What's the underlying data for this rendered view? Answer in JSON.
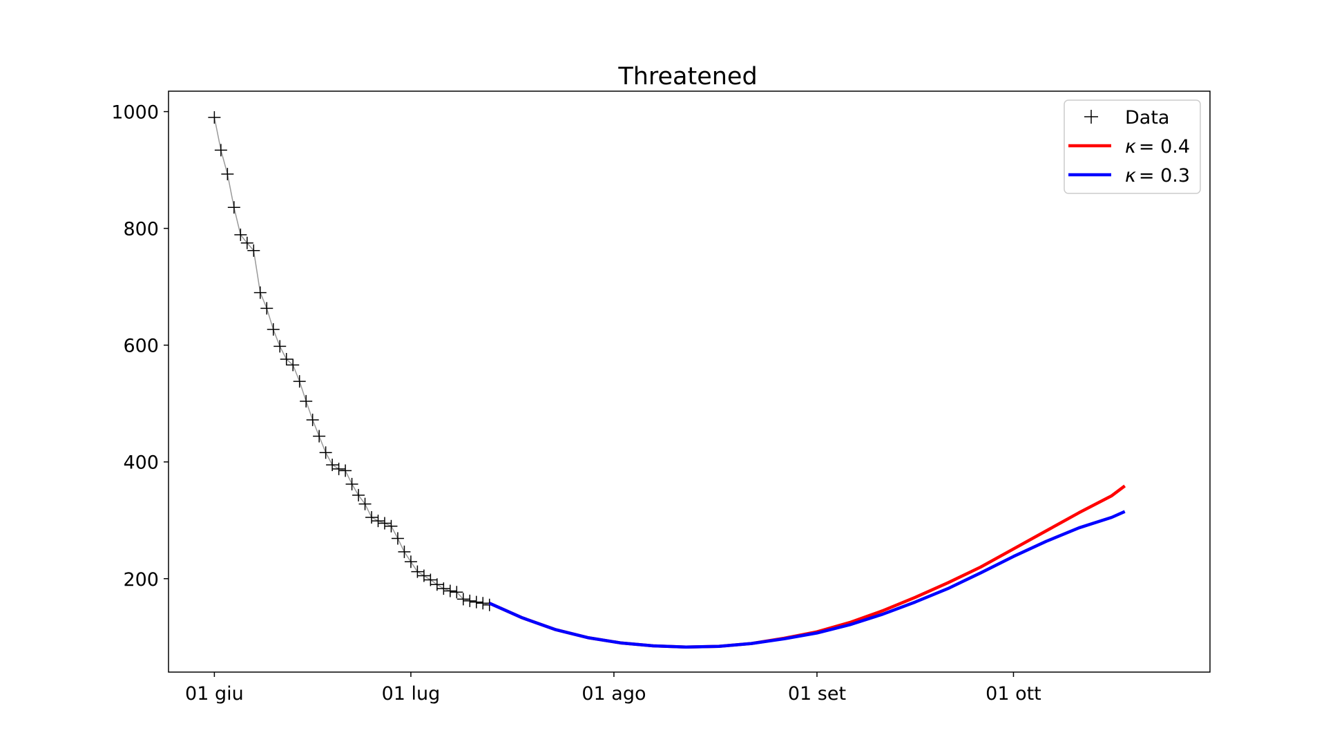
{
  "chart_data": {
    "type": "line",
    "title": "Threatened",
    "xlabel": "",
    "ylabel": "",
    "x_axis": {
      "kind": "date",
      "range": [
        "2020-05-25",
        "2020-10-31"
      ],
      "ticks": [
        {
          "date": "2020-06-01",
          "label": "01 giu"
        },
        {
          "date": "2020-07-01",
          "label": "01 lug"
        },
        {
          "date": "2020-08-01",
          "label": "01 ago"
        },
        {
          "date": "2020-09-01",
          "label": "01 set"
        },
        {
          "date": "2020-10-01",
          "label": "01 ott"
        }
      ]
    },
    "y_axis": {
      "range": [
        40,
        1035
      ],
      "ticks": [
        200,
        400,
        600,
        800,
        1000
      ]
    },
    "grid": false,
    "legend": {
      "placement": "top-right",
      "entries": [
        {
          "label": "Data",
          "symbol": "+",
          "color": "#000000"
        },
        {
          "label_prefix": "κ",
          "label_value": "= 0.4",
          "color": "#ff0000"
        },
        {
          "label_prefix": "κ",
          "label_value": "= 0.3",
          "color": "#0000ff"
        }
      ]
    },
    "series": [
      {
        "kind": "data",
        "color": "#000000",
        "connector_color": "#999999",
        "marker": "+",
        "points": [
          [
            "2020-06-01",
            990
          ],
          [
            "2020-06-02",
            934
          ],
          [
            "2020-06-03",
            893
          ],
          [
            "2020-06-04",
            836
          ],
          [
            "2020-06-05",
            789
          ],
          [
            "2020-06-06",
            775
          ],
          [
            "2020-06-07",
            762
          ],
          [
            "2020-06-08",
            690
          ],
          [
            "2020-06-09",
            663
          ],
          [
            "2020-06-10",
            627
          ],
          [
            "2020-06-11",
            598
          ],
          [
            "2020-06-12",
            576
          ],
          [
            "2020-06-13",
            566
          ],
          [
            "2020-06-14",
            538
          ],
          [
            "2020-06-15",
            504
          ],
          [
            "2020-06-16",
            472
          ],
          [
            "2020-06-17",
            444
          ],
          [
            "2020-06-18",
            416
          ],
          [
            "2020-06-19",
            395
          ],
          [
            "2020-06-20",
            388
          ],
          [
            "2020-06-21",
            385
          ],
          [
            "2020-06-22",
            362
          ],
          [
            "2020-06-23",
            343
          ],
          [
            "2020-06-24",
            328
          ],
          [
            "2020-06-25",
            305
          ],
          [
            "2020-06-26",
            299
          ],
          [
            "2020-06-27",
            295
          ],
          [
            "2020-06-28",
            290
          ],
          [
            "2020-06-29",
            269
          ],
          [
            "2020-06-30",
            246
          ],
          [
            "2020-07-01",
            229
          ],
          [
            "2020-07-02",
            212
          ],
          [
            "2020-07-03",
            205
          ],
          [
            "2020-07-04",
            198
          ],
          [
            "2020-07-05",
            190
          ],
          [
            "2020-07-06",
            183
          ],
          [
            "2020-07-07",
            179
          ],
          [
            "2020-07-08",
            177
          ],
          [
            "2020-07-09",
            165
          ],
          [
            "2020-07-10",
            162
          ],
          [
            "2020-07-11",
            160
          ],
          [
            "2020-07-12",
            158
          ],
          [
            "2020-07-13",
            155
          ]
        ]
      },
      {
        "kind": "model",
        "color": "#ff0000",
        "kappa": 0.4,
        "points": [
          [
            "2020-07-13",
            158
          ],
          [
            "2020-07-18",
            133
          ],
          [
            "2020-07-23",
            113
          ],
          [
            "2020-07-28",
            99
          ],
          [
            "2020-08-02",
            90
          ],
          [
            "2020-08-07",
            85
          ],
          [
            "2020-08-12",
            83
          ],
          [
            "2020-08-17",
            84
          ],
          [
            "2020-08-22",
            89
          ],
          [
            "2020-08-27",
            98
          ],
          [
            "2020-09-01",
            109
          ],
          [
            "2020-09-06",
            125
          ],
          [
            "2020-09-11",
            145
          ],
          [
            "2020-09-16",
            168
          ],
          [
            "2020-09-21",
            193
          ],
          [
            "2020-09-26",
            220
          ],
          [
            "2020-10-01",
            251
          ],
          [
            "2020-10-06",
            282
          ],
          [
            "2020-10-11",
            313
          ],
          [
            "2020-10-16",
            342
          ],
          [
            "2020-10-18",
            359
          ]
        ]
      },
      {
        "kind": "model",
        "color": "#0000ff",
        "kappa": 0.3,
        "points": [
          [
            "2020-07-13",
            158
          ],
          [
            "2020-07-18",
            133
          ],
          [
            "2020-07-23",
            113
          ],
          [
            "2020-07-28",
            99
          ],
          [
            "2020-08-02",
            90
          ],
          [
            "2020-08-07",
            85
          ],
          [
            "2020-08-12",
            83
          ],
          [
            "2020-08-17",
            84
          ],
          [
            "2020-08-22",
            89
          ],
          [
            "2020-08-27",
            97
          ],
          [
            "2020-09-01",
            107
          ],
          [
            "2020-09-06",
            121
          ],
          [
            "2020-09-11",
            139
          ],
          [
            "2020-09-16",
            160
          ],
          [
            "2020-09-21",
            183
          ],
          [
            "2020-09-26",
            210
          ],
          [
            "2020-10-01",
            238
          ],
          [
            "2020-10-06",
            264
          ],
          [
            "2020-10-11",
            287
          ],
          [
            "2020-10-16",
            305
          ],
          [
            "2020-10-18",
            315
          ]
        ]
      }
    ]
  }
}
